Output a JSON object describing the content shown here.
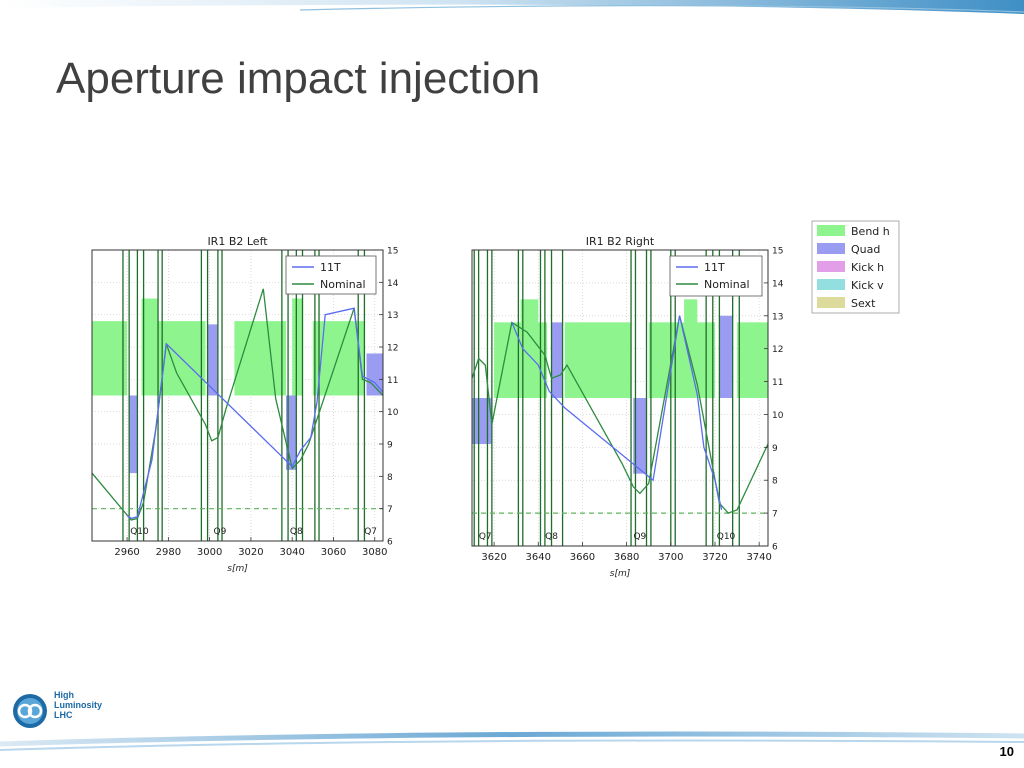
{
  "slide": {
    "title": "Aperture impact injection",
    "page_number": "10",
    "logo": {
      "line1": "High",
      "line2": "Luminosity",
      "line3": "LHC"
    }
  },
  "colors": {
    "bend_h": "#8ef58e",
    "quad": "#9a9cf2",
    "kick_h": "#e29ee6",
    "kick_v": "#93dede",
    "sext": "#dddb9c",
    "nominal_line": "#2e8b40",
    "line_11t": "#5b6cf0",
    "element_edge": "#1f6d2a",
    "grid": "#cccccc",
    "reference_dash": "#5fb35f"
  },
  "legend_elements": [
    "Bend h",
    "Quad",
    "Kick h",
    "Kick v",
    "Sext"
  ],
  "chart_data": [
    {
      "type": "line",
      "title": "IR1 B2 Left",
      "xlabel": "s[m]",
      "ylabel": "",
      "xlim": [
        2943,
        3084
      ],
      "ylim": [
        6,
        15
      ],
      "xticks": [
        2960,
        2980,
        3000,
        3020,
        3040,
        3060,
        3080
      ],
      "yticks": [
        6,
        7,
        8,
        9,
        10,
        11,
        12,
        13,
        14,
        15
      ],
      "grid": true,
      "legend_position": "top-right",
      "reference_line": 7.0,
      "magnet_labels": [
        {
          "label": "Q10",
          "x": 2966
        },
        {
          "label": "Q9",
          "x": 3005
        },
        {
          "label": "Q8",
          "x": 3042
        },
        {
          "label": "Q7",
          "x": 3078
        }
      ],
      "elements": [
        {
          "kind": "Bend h",
          "s0": 2943,
          "s1": 2960,
          "y0": 10.5,
          "y1": 12.8
        },
        {
          "kind": "Bend h",
          "s0": 2975,
          "s1": 2998,
          "y0": 10.5,
          "y1": 12.8
        },
        {
          "kind": "Bend h",
          "s0": 3012,
          "s1": 3037,
          "y0": 10.5,
          "y1": 12.8
        },
        {
          "kind": "Bend h",
          "s0": 3050,
          "s1": 3075,
          "y0": 10.5,
          "y1": 12.8
        },
        {
          "kind": "Bend h",
          "s0": 2967,
          "s1": 2975,
          "y0": 10.5,
          "y1": 13.5
        },
        {
          "kind": "Bend h",
          "s0": 3040,
          "s1": 3045,
          "y0": 10.5,
          "y1": 13.5
        },
        {
          "kind": "Quad",
          "s0": 2961,
          "s1": 2965,
          "y0": 8.1,
          "y1": 10.5
        },
        {
          "kind": "Quad",
          "s0": 2999,
          "s1": 3004,
          "y0": 10.5,
          "y1": 12.7
        },
        {
          "kind": "Quad",
          "s0": 3037,
          "s1": 3042,
          "y0": 8.2,
          "y1": 10.5
        },
        {
          "kind": "Quad",
          "s0": 3076,
          "s1": 3084,
          "y0": 10.5,
          "y1": 11.8
        }
      ],
      "element_edges": [
        2958,
        2961,
        2965,
        2968,
        2975,
        2977,
        2996,
        2999,
        3004,
        3006,
        3035,
        3038,
        3042,
        3045,
        3051,
        3053,
        3072,
        3075
      ],
      "series": [
        {
          "name": "Nominal",
          "x": [
            2943,
            2960,
            2962,
            2965,
            2968,
            2974,
            2979,
            2984,
            2998,
            3001,
            3004,
            3008,
            3026,
            3032,
            3040,
            3044,
            3048,
            3070,
            3074,
            3078,
            3084
          ],
          "y": [
            8.1,
            6.8,
            6.65,
            6.7,
            7.2,
            9.5,
            12.1,
            11.2,
            9.6,
            9.1,
            9.2,
            10.1,
            13.8,
            10.4,
            8.25,
            8.5,
            9.0,
            13.2,
            11.0,
            10.9,
            10.5
          ]
        },
        {
          "name": "11T",
          "x": [
            2960,
            2962,
            2965,
            2968,
            2972,
            2979,
            3040,
            3044,
            3049,
            3052,
            3056,
            3070,
            3074,
            3080,
            3084
          ],
          "y": [
            6.8,
            6.7,
            6.75,
            7.5,
            8.5,
            12.1,
            8.3,
            8.8,
            9.2,
            10.3,
            13.0,
            13.2,
            11.1,
            10.9,
            10.6
          ]
        }
      ]
    },
    {
      "type": "line",
      "title": "IR1 B2 Right",
      "xlabel": "s[m]",
      "ylabel": "",
      "xlim": [
        3610,
        3744
      ],
      "ylim": [
        6,
        15
      ],
      "xticks": [
        3620,
        3640,
        3660,
        3680,
        3700,
        3720,
        3740
      ],
      "yticks": [
        6,
        7,
        8,
        9,
        10,
        11,
        12,
        13,
        14,
        15
      ],
      "grid": true,
      "legend_position": "top-right",
      "reference_line": 7.0,
      "magnet_labels": [
        {
          "label": "Q7",
          "x": 3616
        },
        {
          "label": "Q8",
          "x": 3646
        },
        {
          "label": "Q9",
          "x": 3686
        },
        {
          "label": "Q10",
          "x": 3725
        }
      ],
      "elements": [
        {
          "kind": "Bend h",
          "s0": 3620,
          "s1": 3644,
          "y0": 10.5,
          "y1": 12.8
        },
        {
          "kind": "Bend h",
          "s0": 3652,
          "s1": 3682,
          "y0": 10.5,
          "y1": 12.8
        },
        {
          "kind": "Bend h",
          "s0": 3690,
          "s1": 3720,
          "y0": 10.5,
          "y1": 12.8
        },
        {
          "kind": "Bend h",
          "s0": 3730,
          "s1": 3744,
          "y0": 10.5,
          "y1": 12.8
        },
        {
          "kind": "Bend h",
          "s0": 3632,
          "s1": 3640,
          "y0": 10.5,
          "y1": 13.5
        },
        {
          "kind": "Bend h",
          "s0": 3706,
          "s1": 3712,
          "y0": 10.5,
          "y1": 13.5
        },
        {
          "kind": "Quad",
          "s0": 3610,
          "s1": 3619,
          "y0": 9.1,
          "y1": 10.5
        },
        {
          "kind": "Quad",
          "s0": 3646,
          "s1": 3651,
          "y0": 10.5,
          "y1": 12.8
        },
        {
          "kind": "Quad",
          "s0": 3683,
          "s1": 3689,
          "y0": 8.2,
          "y1": 10.5
        },
        {
          "kind": "Quad",
          "s0": 3722,
          "s1": 3728,
          "y0": 10.5,
          "y1": 13.0
        }
      ],
      "element_edges": [
        3611,
        3613,
        3617,
        3619,
        3631,
        3633,
        3641,
        3643,
        3646,
        3651,
        3682,
        3684,
        3689,
        3691,
        3700,
        3702,
        3716,
        3719,
        3722,
        3728,
        3731
      ],
      "series": [
        {
          "name": "Nominal",
          "x": [
            3610,
            3613,
            3616,
            3619,
            3628,
            3635,
            3643,
            3646,
            3650,
            3653,
            3678,
            3683,
            3686,
            3690,
            3704,
            3712,
            3722,
            3726,
            3730,
            3744
          ],
          "y": [
            11.1,
            11.7,
            11.5,
            9.7,
            12.8,
            12.5,
            11.8,
            11.1,
            11.2,
            11.5,
            8.5,
            7.8,
            7.6,
            7.9,
            13.0,
            10.9,
            7.3,
            7.0,
            7.1,
            9.1
          ]
        },
        {
          "name": "11T",
          "x": [
            3628,
            3633,
            3640,
            3645,
            3652,
            3692,
            3704,
            3712,
            3715,
            3720,
            3723
          ],
          "y": [
            12.8,
            12.0,
            11.5,
            10.7,
            10.2,
            8.0,
            13.0,
            10.6,
            9.0,
            8.0,
            7.1
          ]
        }
      ]
    }
  ]
}
